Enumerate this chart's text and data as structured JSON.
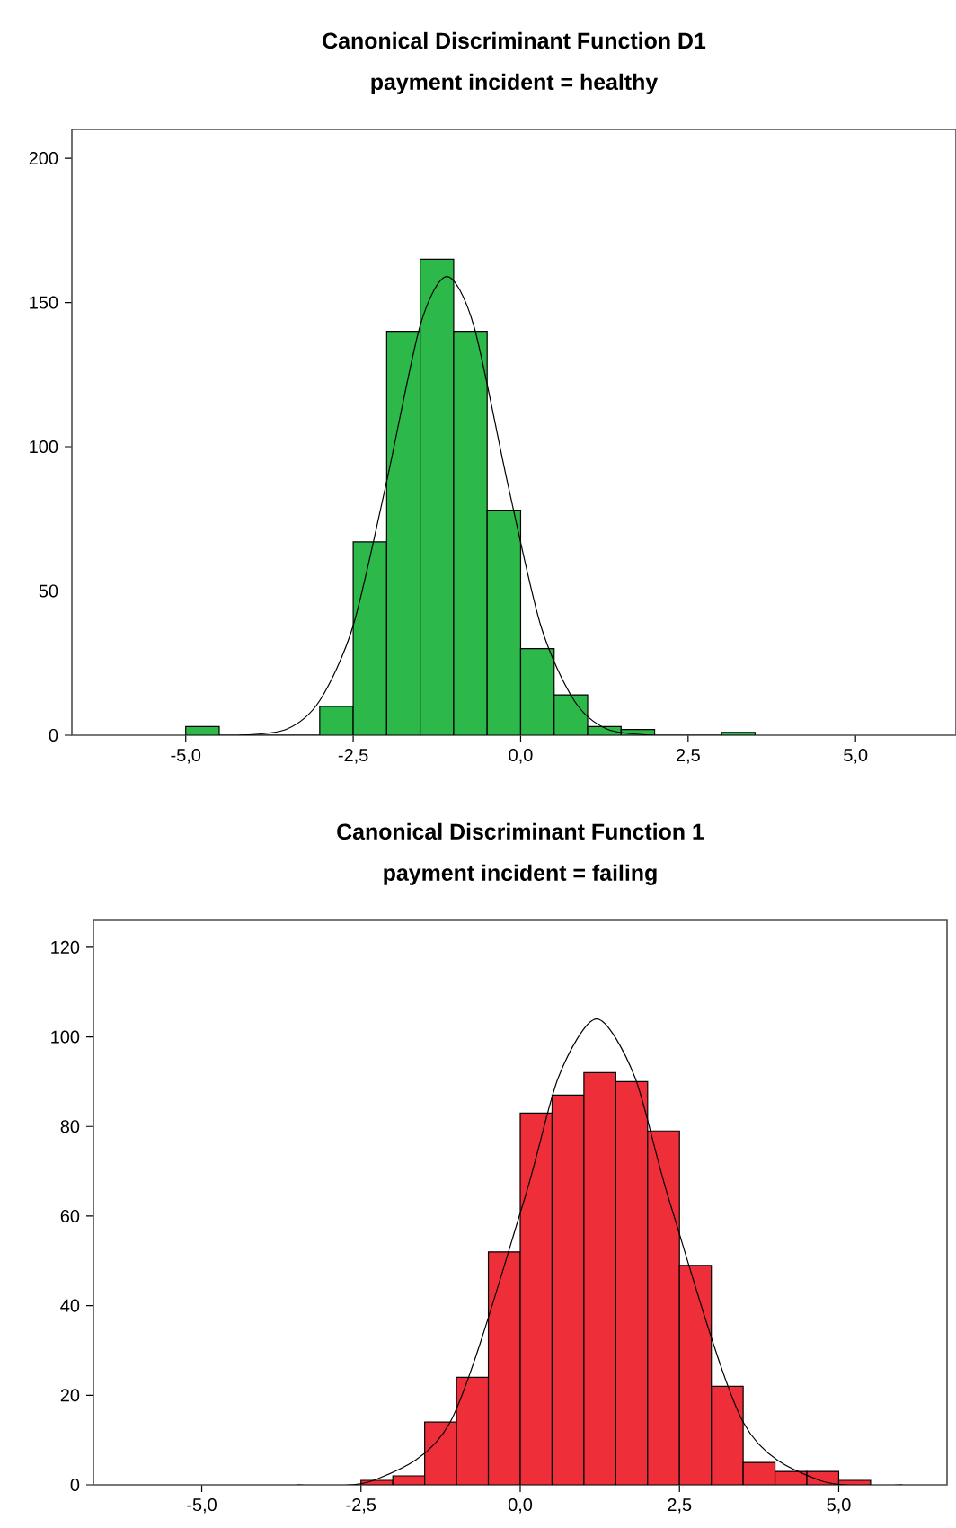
{
  "chart_data": [
    {
      "type": "histogram",
      "title": "Canonical Discriminant Function  D1",
      "subtitle": "payment incident = healthy",
      "color": "#2db84a",
      "bins": [
        -5.0,
        -4.5,
        -4.0,
        -3.5,
        -3.0,
        -2.5,
        -2.0,
        -1.5,
        -1.0,
        -0.5,
        0.0,
        0.5,
        1.0,
        1.5,
        2.0,
        2.5,
        3.0,
        3.5
      ],
      "values": [
        3,
        0,
        0,
        0,
        10,
        67,
        140,
        165,
        140,
        78,
        30,
        14,
        3,
        2,
        0,
        0,
        1
      ],
      "series": [
        {
          "type": "line",
          "color": "#000000",
          "x": [
            -4.2,
            -3.5,
            -3.0,
            -2.5,
            -2.0,
            -1.5,
            -1.1,
            -0.7,
            -0.2,
            0.3,
            0.8,
            1.3,
            2.0
          ],
          "values": [
            0,
            2,
            12,
            38,
            88,
            142,
            159,
            142,
            88,
            38,
            12,
            2,
            0
          ]
        }
      ],
      "xlim": [
        -6.7,
        6.5
      ],
      "ylim": [
        0,
        210
      ],
      "xticks": [
        {
          "value": -5,
          "label": "-5,0"
        },
        {
          "value": -2.5,
          "label": "-2,5"
        },
        {
          "value": 0,
          "label": "0,0"
        },
        {
          "value": 2.5,
          "label": "2,5"
        },
        {
          "value": 5,
          "label": "5,0"
        }
      ],
      "yticks": [
        0,
        50,
        100,
        150,
        200
      ]
    },
    {
      "type": "histogram",
      "title": "Canonical Discriminant Function  1",
      "subtitle": "payment incident = failing",
      "color": "#ee2e38",
      "bins": [
        -2.5,
        -2.0,
        -1.5,
        -1.0,
        -0.5,
        0.0,
        0.5,
        1.0,
        1.5,
        2.0,
        2.5,
        3.0,
        3.5,
        4.0,
        4.5,
        5.0,
        5.5
      ],
      "values": [
        1,
        2,
        14,
        24,
        52,
        83,
        87,
        92,
        90,
        79,
        49,
        22,
        5,
        3,
        3,
        1
      ],
      "series": [
        {
          "type": "line",
          "color": "#000000",
          "x": [
            -3.5,
            -2.3,
            -1.1,
            0.05,
            0.6,
            1.2,
            1.8,
            2.35,
            3.5,
            4.7,
            6.0
          ],
          "values": [
            0,
            1,
            14,
            63,
            91,
            104,
            91,
            63,
            14,
            1,
            0
          ]
        }
      ],
      "xlim": [
        -6.7,
        6.7
      ],
      "ylim": [
        0,
        126
      ],
      "xticks": [
        {
          "value": -5,
          "label": "-5,0"
        },
        {
          "value": -2.5,
          "label": "-2,5"
        },
        {
          "value": 0,
          "label": "0,0"
        },
        {
          "value": 2.5,
          "label": "2,5"
        },
        {
          "value": 5,
          "label": "5,0"
        }
      ],
      "yticks": [
        0,
        20,
        40,
        60,
        80,
        100,
        120
      ]
    }
  ]
}
